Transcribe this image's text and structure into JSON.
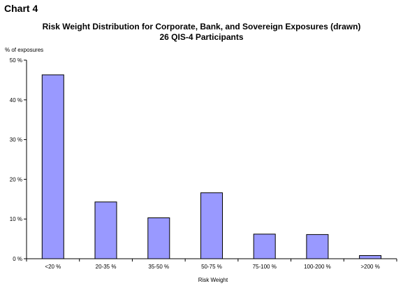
{
  "header": {
    "chart_label": "Chart 4"
  },
  "chart_data": {
    "type": "bar",
    "title": "Risk Weight Distribution for Corporate, Bank, and Sovereign Exposures (drawn)",
    "subtitle": "26 QIS-4 Participants",
    "xlabel": "Risk Weight",
    "ylabel": "% of exposures",
    "categories": [
      "<20 %",
      "20-35 %",
      "35-50 %",
      "50-75 %",
      "75-100 %",
      "100-200 %",
      ">200 %"
    ],
    "values": [
      46.3,
      14.3,
      10.3,
      16.6,
      6.2,
      6.1,
      0.8
    ],
    "ylim": [
      0,
      50
    ],
    "yticks": [
      0,
      10,
      20,
      30,
      40,
      50
    ],
    "ytick_labels": [
      "0 %",
      "10 %",
      "20 %",
      "30 %",
      "40 %",
      "50 %"
    ],
    "grid": false,
    "legend": "none",
    "bar_color": "#9999ff",
    "bar_edge_color": "#000000"
  }
}
